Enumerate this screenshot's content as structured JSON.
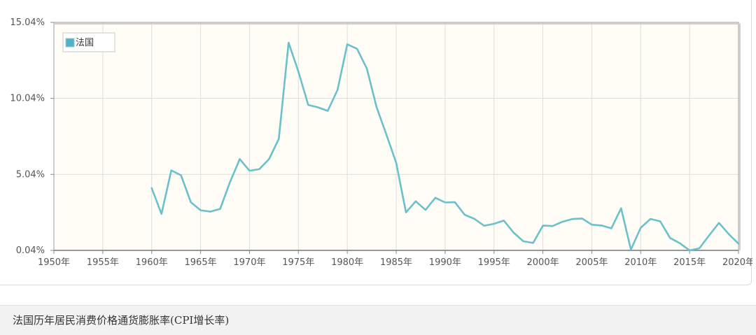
{
  "colors": {
    "line": "#6ac1cc",
    "plot_bg": "#fffdf5",
    "grid": "#dedede",
    "frame": "#9a9a9a",
    "legend_swatch": "#4fb3c4"
  },
  "footer": {
    "title": "法国历年居民消费价格通货膨胀率(CPI增长率)"
  },
  "chart_data": {
    "type": "line",
    "title": "",
    "xlabel": "",
    "ylabel": "",
    "xlim": [
      1950,
      2020
    ],
    "ylim": [
      0.04,
      15.04
    ],
    "legend": "top-left",
    "grid": true,
    "x_ticks": [
      "1950年",
      "1955年",
      "1960年",
      "1965年",
      "1970年",
      "1975年",
      "1980年",
      "1985年",
      "1990年",
      "1995年",
      "2000年",
      "2005年",
      "2010年",
      "2015年",
      "2020年"
    ],
    "y_ticks": [
      "0.04%",
      "5.04%",
      "10.04%",
      "15.04%"
    ],
    "series": [
      {
        "name": "法国",
        "x": [
          1960,
          1961,
          1962,
          1963,
          1964,
          1965,
          1966,
          1967,
          1968,
          1969,
          1970,
          1971,
          1972,
          1973,
          1974,
          1975,
          1976,
          1977,
          1978,
          1979,
          1980,
          1981,
          1982,
          1983,
          1984,
          1985,
          1986,
          1987,
          1988,
          1989,
          1990,
          1991,
          1992,
          1993,
          1994,
          1995,
          1996,
          1997,
          1998,
          1999,
          2000,
          2001,
          2002,
          2003,
          2004,
          2005,
          2006,
          2007,
          2008,
          2009,
          2010,
          2011,
          2012,
          2013,
          2014,
          2015,
          2016,
          2017,
          2018,
          2019,
          2020
        ],
        "y": [
          4.14,
          2.44,
          5.3,
          4.98,
          3.21,
          2.68,
          2.59,
          2.77,
          4.52,
          6.05,
          5.28,
          5.38,
          6.05,
          7.38,
          13.7,
          11.8,
          9.61,
          9.45,
          9.22,
          10.6,
          13.6,
          13.3,
          12.0,
          9.44,
          7.66,
          5.8,
          2.54,
          3.27,
          2.7,
          3.5,
          3.19,
          3.21,
          2.38,
          2.11,
          1.66,
          1.79,
          2.0,
          1.21,
          0.64,
          0.53,
          1.67,
          1.64,
          1.92,
          2.1,
          2.14,
          1.73,
          1.68,
          1.49,
          2.81,
          0.09,
          1.53,
          2.11,
          1.95,
          0.86,
          0.51,
          0.04,
          0.18,
          1.03,
          1.85,
          1.11,
          0.48
        ]
      }
    ]
  }
}
